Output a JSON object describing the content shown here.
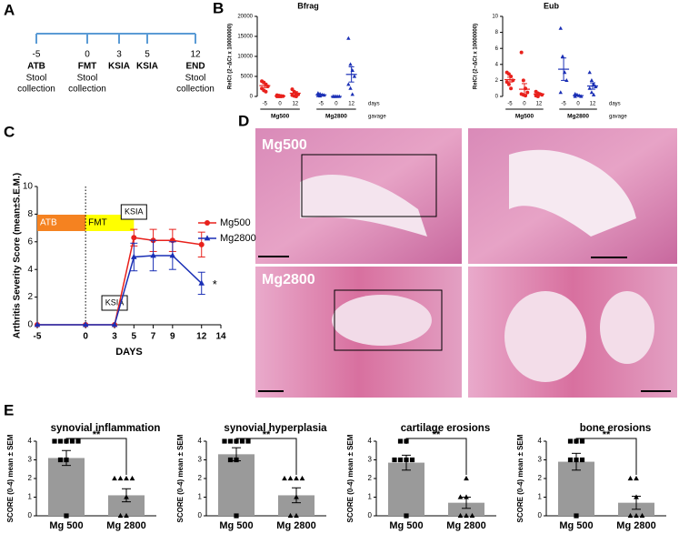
{
  "panels": [
    "A",
    "B",
    "C",
    "D",
    "E"
  ],
  "timeline": {
    "events": [
      {
        "day": "-5",
        "label": "ATB",
        "note": [
          "Stool",
          "collection"
        ]
      },
      {
        "day": "0",
        "label": "FMT",
        "note": [
          "Stool",
          "collection"
        ]
      },
      {
        "day": "3",
        "label": "KSIA",
        "note": []
      },
      {
        "day": "5",
        "label": "KSIA",
        "note": []
      },
      {
        "day": "12",
        "label": "END",
        "note": [
          "Stool",
          "collection"
        ]
      }
    ]
  },
  "histology": {
    "labels": [
      "Mg500",
      "Mg2800"
    ]
  },
  "chart_data": [
    {
      "type": "dot_plot",
      "title": "Bfrag",
      "ylabel": "RelCt (2−ΔCt x 10000000)",
      "ylim": [
        0,
        20000
      ],
      "yticks": [
        0,
        5000,
        10000,
        15000,
        20000
      ],
      "x_unit": "days",
      "group_label": "gavage",
      "series": [
        {
          "name": "Mg500",
          "color": "#e8211c",
          "marker": "circle",
          "categories": [
            "-5",
            "0",
            "12"
          ],
          "points": [
            [
              3800,
              3500,
              3000,
              2500,
              2000,
              1500,
              1200
            ],
            [
              300,
              200,
              100,
              50,
              0,
              0,
              0
            ],
            [
              1800,
              1200,
              800,
              500,
              300,
              100,
              0
            ]
          ],
          "means": [
            2700,
            100,
            800
          ],
          "sems": [
            500,
            50,
            400
          ]
        },
        {
          "name": "Mg2800",
          "color": "#1a2fb5",
          "marker": "triangle",
          "categories": [
            "-5",
            "0",
            "12"
          ],
          "points": [
            [
              800,
              600,
              400,
              300,
              200,
              100
            ],
            [
              0,
              0,
              0,
              0,
              0,
              0
            ],
            [
              14500,
              8000,
              6500,
              5000,
              3000,
              2000,
              500
            ]
          ],
          "means": [
            400,
            0,
            5500
          ],
          "sems": [
            120,
            0,
            1900
          ]
        }
      ]
    },
    {
      "type": "dot_plot",
      "title": "Eub",
      "ylabel": "RelCt (2−ΔCt x 10000000)",
      "ylim": [
        0,
        10
      ],
      "yticks": [
        0,
        2,
        4,
        6,
        8,
        10
      ],
      "x_unit": "days",
      "group_label": "gavage",
      "series": [
        {
          "name": "Mg500",
          "color": "#e8211c",
          "marker": "circle",
          "categories": [
            "-5",
            "0",
            "12"
          ],
          "points": [
            [
              3,
              2.8,
              2.5,
              2,
              1.8,
              1.5,
              1
            ],
            [
              5.5,
              2,
              1,
              0.5,
              0.3,
              0.2,
              0.1
            ],
            [
              0.6,
              0.4,
              0.3,
              0.2,
              0.1,
              0
            ]
          ],
          "means": [
            2.1,
            0.9,
            0.3
          ],
          "sems": [
            0.3,
            0.7,
            0.1
          ]
        },
        {
          "name": "Mg2800",
          "color": "#1a2fb5",
          "marker": "triangle",
          "categories": [
            "-5",
            "0",
            "12"
          ],
          "points": [
            [
              8.5,
              5,
              3,
              2,
              0.5
            ],
            [
              0.3,
              0.2,
              0.1,
              0,
              0
            ],
            [
              3,
              2,
              1.5,
              1.2,
              1,
              0.5,
              0.2
            ]
          ],
          "means": [
            3.4,
            0.1,
            1.3
          ],
          "sems": [
            1.4,
            0.05,
            0.4
          ]
        }
      ]
    },
    {
      "type": "line",
      "ylabel": "Arthritis Severity Score (mean±S.E.M.)",
      "xlabel": "DAYS",
      "xlim": [
        -5,
        14
      ],
      "xticks": [
        -5,
        0,
        3,
        5,
        7,
        9,
        12,
        14
      ],
      "ylim": [
        0,
        10
      ],
      "yticks": [
        0,
        2,
        4,
        6,
        8,
        10
      ],
      "legend": "upper right",
      "bands": [
        {
          "label": "ATB",
          "color": "#f58220"
        },
        {
          "label": "FMT",
          "color": "#ffff00"
        }
      ],
      "annotations": [
        "KSIA",
        "KSIA",
        "*"
      ],
      "series": [
        {
          "name": "Mg500",
          "color": "#e8211c",
          "marker": "circle",
          "x": [
            -5,
            0,
            3,
            5,
            7,
            9,
            12
          ],
          "values": [
            0,
            0,
            0,
            6.3,
            6.1,
            6.1,
            5.8
          ],
          "errors": [
            0,
            0,
            0,
            0.6,
            0.8,
            0.8,
            0.9
          ]
        },
        {
          "name": "Mg2800",
          "color": "#1a2fb5",
          "marker": "triangle",
          "x": [
            -5,
            0,
            3,
            5,
            7,
            9,
            12
          ],
          "values": [
            0,
            0,
            0,
            4.9,
            5.0,
            5.0,
            3.0
          ],
          "errors": [
            0,
            0,
            0,
            1.0,
            1.1,
            1.0,
            0.8
          ]
        }
      ]
    },
    {
      "type": "bar",
      "title": "synovial inflammation",
      "ylabel": "SCORE (0-4) mean ± SEM",
      "ylim": [
        0,
        4
      ],
      "yticks": [
        0,
        1,
        2,
        3,
        4
      ],
      "color": "#9a9a9a",
      "markers": [
        "square",
        "triangle"
      ],
      "annotation": "**",
      "categories": [
        "Mg 500",
        "Mg 2800"
      ],
      "values": [
        3.1,
        1.1
      ],
      "errors": [
        0.4,
        0.35
      ],
      "points": [
        [
          4,
          4,
          4,
          4,
          4,
          3,
          3,
          0
        ],
        [
          2,
          2,
          2,
          2,
          1,
          0,
          0
        ]
      ]
    },
    {
      "type": "bar",
      "title": "synovial hyperplasia",
      "ylabel": "SCORE (0-4) mean ± SEM",
      "ylim": [
        0,
        4
      ],
      "yticks": [
        0,
        1,
        2,
        3,
        4
      ],
      "color": "#9a9a9a",
      "markers": [
        "square",
        "triangle"
      ],
      "annotation": "**",
      "categories": [
        "Mg 500",
        "Mg 2800"
      ],
      "values": [
        3.3,
        1.1
      ],
      "errors": [
        0.35,
        0.4
      ],
      "points": [
        [
          4,
          4,
          4,
          4,
          4,
          3,
          3,
          0
        ],
        [
          2,
          2,
          2,
          2,
          1,
          0,
          0
        ]
      ]
    },
    {
      "type": "bar",
      "title": "cartilage erosions",
      "ylabel": "SCORE (0-4) mean ± SEM",
      "ylim": [
        0,
        4
      ],
      "yticks": [
        0,
        1,
        2,
        3,
        4
      ],
      "color": "#9a9a9a",
      "markers": [
        "square",
        "triangle"
      ],
      "annotation": "**",
      "categories": [
        "Mg 500",
        "Mg 2800"
      ],
      "values": [
        2.85,
        0.7
      ],
      "errors": [
        0.4,
        0.3
      ],
      "points": [
        [
          4,
          4,
          3,
          3,
          3,
          3,
          0
        ],
        [
          2,
          1,
          1,
          0,
          0,
          0
        ]
      ]
    },
    {
      "type": "bar",
      "title": "bone erosions",
      "ylabel": "SCORE (0-4) mean ± SEM",
      "ylim": [
        0,
        4
      ],
      "yticks": [
        0,
        1,
        2,
        3,
        4
      ],
      "color": "#9a9a9a",
      "markers": [
        "square",
        "triangle"
      ],
      "annotation": "**",
      "categories": [
        "Mg 500",
        "Mg 2800"
      ],
      "values": [
        2.9,
        0.7
      ],
      "errors": [
        0.45,
        0.35
      ],
      "points": [
        [
          4,
          4,
          4,
          3,
          3,
          3,
          0
        ],
        [
          2,
          2,
          1,
          0,
          0,
          0
        ]
      ]
    }
  ]
}
